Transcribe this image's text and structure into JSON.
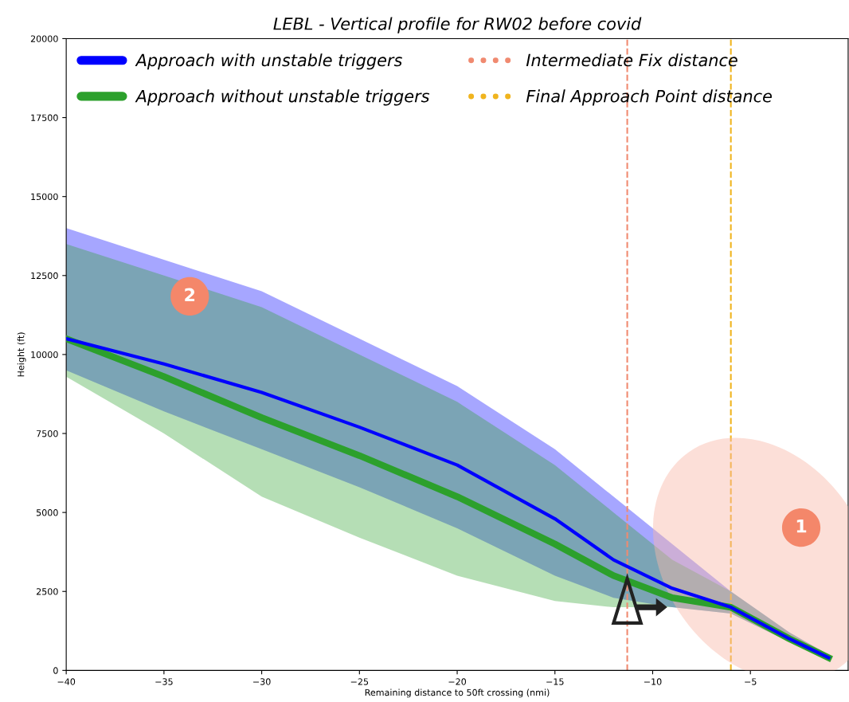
{
  "chart_data": {
    "type": "line",
    "title": "LEBL - Vertical profile for RW02 before covid",
    "xlabel": "Remaining distance to 50ft crossing (nmi)",
    "ylabel": "Height (ft)",
    "series": [
      {
        "name": "Approach with unstable triggers",
        "color": "#0000ff",
        "x": [
          -40,
          -35,
          -30,
          -25,
          -20,
          -15,
          -12,
          -9,
          -6,
          -3,
          -1
        ],
        "values": [
          10500,
          9700,
          8800,
          7700,
          6500,
          4800,
          3500,
          2600,
          2000,
          1000,
          400
        ],
        "lower": [
          9500,
          8200,
          7000,
          5800,
          4500,
          3000,
          2300,
          2000,
          1800,
          900,
          300
        ],
        "upper": [
          14000,
          13000,
          12000,
          10500,
          9000,
          7000,
          5500,
          4000,
          2500,
          1200,
          500
        ]
      },
      {
        "name": "Approach without unstable triggers",
        "color": "#2ca02c",
        "x": [
          -40,
          -35,
          -30,
          -25,
          -20,
          -15,
          -12,
          -9,
          -6,
          -3,
          -1
        ],
        "values": [
          10500,
          9300,
          8000,
          6800,
          5500,
          4000,
          3000,
          2300,
          2000,
          1000,
          400
        ],
        "lower": [
          9300,
          7500,
          5500,
          4200,
          3000,
          2200,
          2000,
          2000,
          1800,
          900,
          300
        ],
        "upper": [
          13500,
          12500,
          11500,
          10000,
          8500,
          6500,
          5000,
          3500,
          2500,
          1200,
          500
        ]
      }
    ],
    "ref_lines": [
      {
        "axis": "x",
        "value": -11.3,
        "label": "Intermediate Fix distance",
        "color": "#f08a70",
        "line_style": "dashed"
      },
      {
        "axis": "x",
        "value": -6,
        "label": "Final Approach Point distance",
        "color": "#f0b41e",
        "line_style": "dashed"
      }
    ],
    "annotations": [
      "1",
      "2"
    ],
    "xlim": [
      -40,
      0
    ],
    "ylim": [
      0,
      20000
    ],
    "xticks": [
      -40,
      -35,
      -30,
      -25,
      -20,
      -15,
      -10,
      -5
    ],
    "yticks": [
      0,
      2500,
      5000,
      7500,
      10000,
      12500,
      15000,
      17500,
      20000
    ],
    "legend": "top left",
    "grid": false
  }
}
